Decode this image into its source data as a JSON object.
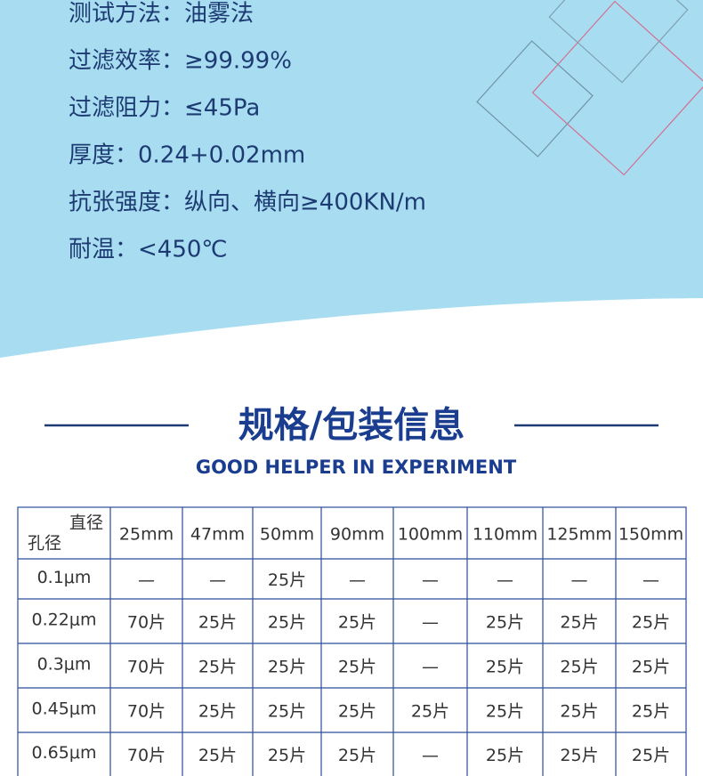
{
  "specs": [
    "测试方法：油雾法",
    "过滤效率：≥99.99%",
    "过滤阻力：≤45Pa",
    "厚度：0.24+0.02mm",
    "抗张强度：纵向、横向≥400KN/m",
    "耐温：<450℃"
  ],
  "section": {
    "title": "规格/包装信息",
    "subtitle": "GOOD HELPER IN EXPERIMENT"
  },
  "table": {
    "corner": {
      "top": "直径",
      "bottom": "孔径"
    },
    "columns": [
      "25mm",
      "47mm",
      "50mm",
      "90mm",
      "100mm",
      "110mm",
      "125mm",
      "150mm"
    ],
    "rows": [
      {
        "label": "0.1μm",
        "cells": [
          "—",
          "—",
          "25片",
          "—",
          "—",
          "—",
          "—",
          "—"
        ]
      },
      {
        "label": "0.22μm",
        "cells": [
          "70片",
          "25片",
          "25片",
          "25片",
          "—",
          "25片",
          "25片",
          "25片"
        ]
      },
      {
        "label": "0.3μm",
        "cells": [
          "70片",
          "25片",
          "25片",
          "25片",
          "—",
          "25片",
          "25片",
          "25片"
        ]
      },
      {
        "label": "0.45μm",
        "cells": [
          "70片",
          "25片",
          "25片",
          "25片",
          "25片",
          "25片",
          "25片",
          "25片"
        ]
      },
      {
        "label": "0.65μm",
        "cells": [
          "70片",
          "25片",
          "25片",
          "25片",
          "—",
          "25片",
          "25片",
          "25片"
        ]
      }
    ]
  }
}
